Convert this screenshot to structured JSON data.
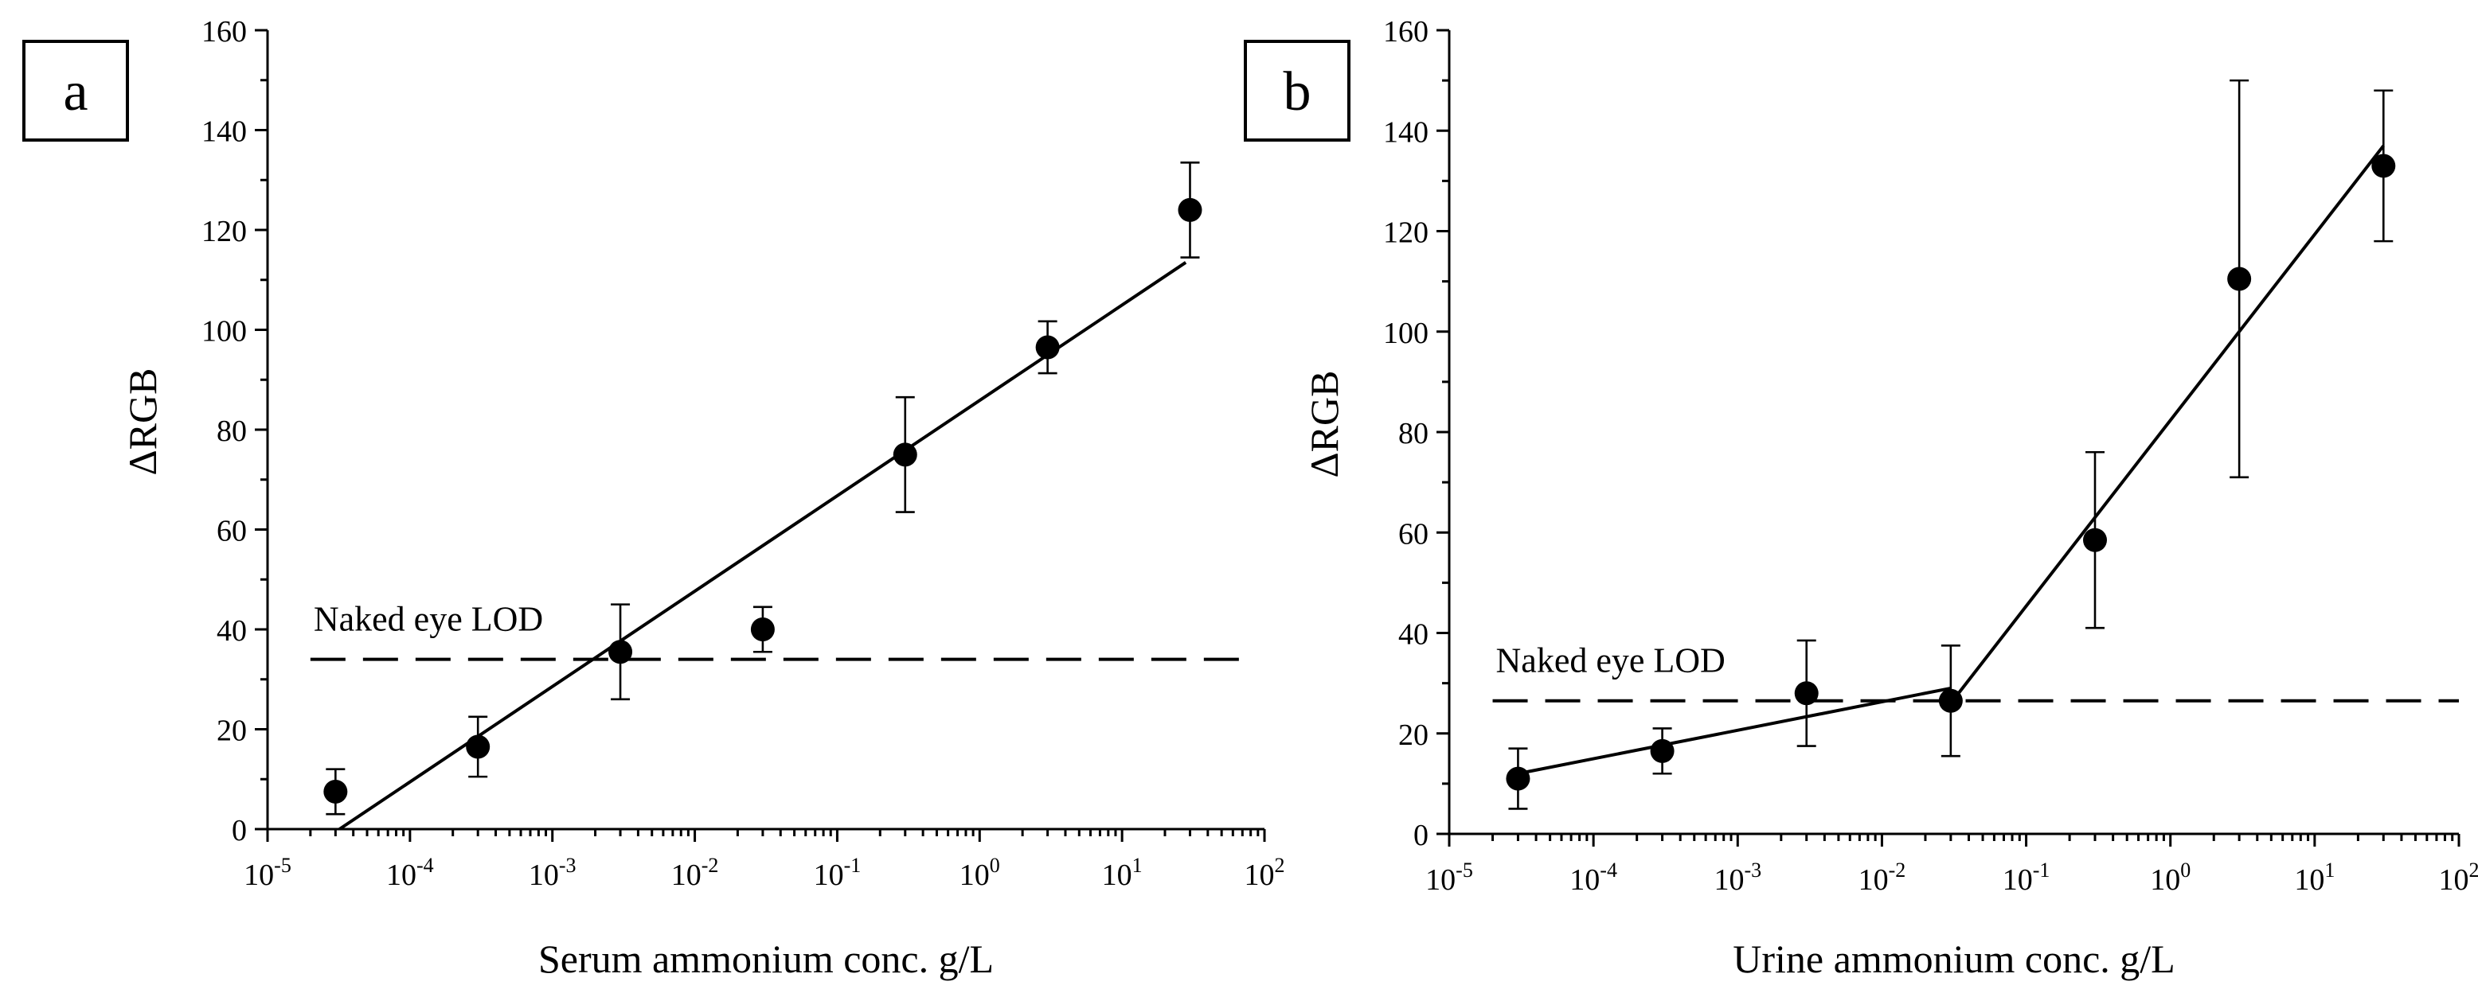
{
  "chart_data": [
    {
      "panel_label": "a",
      "type": "scatter",
      "xlabel": "Serum ammonium conc. g/L",
      "ylabel": "ΔRGB",
      "xscale": "log",
      "xlim_exp": [
        -5,
        2
      ],
      "ylim": [
        0,
        160
      ],
      "ytick_step": 20,
      "grid": false,
      "x": [
        3e-05,
        0.0003,
        0.003,
        0.03,
        0.3,
        3,
        30
      ],
      "y": [
        7.5,
        16.5,
        35.5,
        40,
        75,
        96.5,
        124
      ],
      "yerr": [
        4.5,
        6,
        9.5,
        4.5,
        11.5,
        5.2,
        9.5
      ],
      "fit_segments": [
        [
          [
            3.2e-05,
            0
          ],
          [
            28,
            113.5
          ]
        ]
      ],
      "lod": {
        "label": "Naked eye LOD",
        "y": 34,
        "x_range": [
          2e-05,
          70
        ]
      }
    },
    {
      "panel_label": "b",
      "type": "scatter",
      "xlabel": "Urine ammonium conc. g/L",
      "ylabel": "ΔRGB",
      "xscale": "log",
      "xlim_exp": [
        -5,
        2
      ],
      "ylim": [
        0,
        160
      ],
      "ytick_step": 20,
      "grid": false,
      "x": [
        3e-05,
        0.0003,
        0.003,
        0.03,
        0.3,
        3,
        30
      ],
      "y": [
        11,
        16.5,
        28,
        26.5,
        58.5,
        110.5,
        133
      ],
      "yerr": [
        6,
        4.5,
        10.5,
        11,
        17.5,
        39.5,
        15
      ],
      "fit_segments": [
        [
          [
            3e-05,
            12
          ],
          [
            0.03,
            29
          ]
        ],
        [
          [
            0.03,
            26
          ],
          [
            30,
            137
          ]
        ]
      ],
      "lod": {
        "label": "Naked eye LOD",
        "y": 26.5,
        "x_range": [
          2e-05,
          100
        ]
      }
    }
  ]
}
